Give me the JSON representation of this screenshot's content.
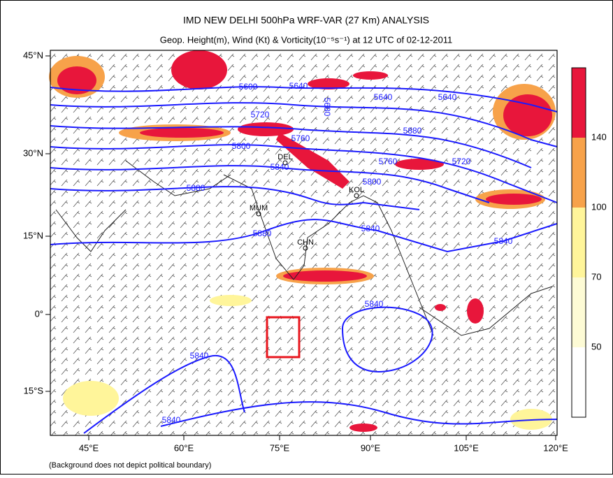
{
  "title": "IMD NEW DELHI 500hPa WRF-VAR (27 Km) ANALYSIS",
  "subtitle": "Geop. Height(m), Wind (Kt) & Vorticity(10⁻⁵s⁻¹) at 12 UTC of 02-12-2011",
  "lat_labels": [
    "45°N",
    "30°N",
    "15°N",
    "0°",
    "15°S"
  ],
  "lon_labels": [
    "45°E",
    "60°E",
    "75°E",
    "90°E",
    "105°E",
    "120°E"
  ],
  "colorbar_labels": [
    140,
    100,
    70,
    50
  ],
  "contour_labels": [
    5600,
    5640,
    5640,
    5640,
    5680,
    5720,
    5760,
    5800,
    5840,
    5880,
    5760,
    5800,
    5720,
    5880,
    5840,
    5880,
    5840,
    5840,
    5840,
    5840
  ],
  "cities": [
    "DEL",
    "KOL",
    "MUM",
    "CHN"
  ],
  "footnote": "(Background does not depict political boundary)"
}
